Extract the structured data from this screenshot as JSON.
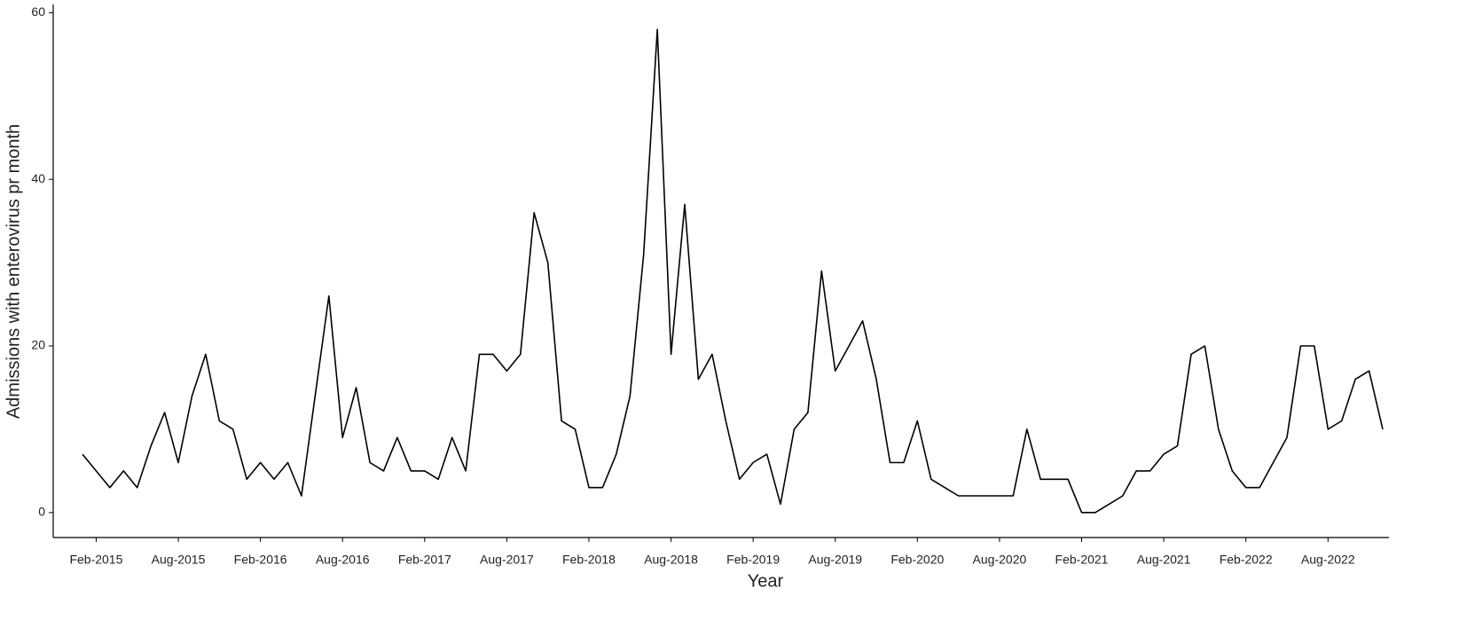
{
  "chart_data": {
    "type": "line",
    "x_label": "Year",
    "y_label": "Admissions with enterovirus pr month",
    "categories": [
      null,
      "Feb-2015",
      null,
      null,
      null,
      null,
      null,
      "Aug-2015",
      null,
      null,
      null,
      null,
      null,
      "Feb-2016",
      null,
      null,
      null,
      null,
      null,
      "Aug-2016",
      null,
      null,
      null,
      null,
      null,
      "Feb-2017",
      null,
      null,
      null,
      null,
      null,
      "Aug-2017",
      null,
      null,
      null,
      null,
      null,
      "Feb-2018",
      null,
      null,
      null,
      null,
      null,
      "Aug-2018",
      null,
      null,
      null,
      null,
      null,
      "Feb-2019",
      null,
      null,
      null,
      null,
      null,
      "Aug-2019",
      null,
      null,
      null,
      null,
      null,
      "Feb-2020",
      null,
      null,
      null,
      null,
      null,
      "Aug-2020",
      null,
      null,
      null,
      null,
      null,
      "Feb-2021",
      null,
      null,
      null,
      null,
      null,
      "Aug-2021",
      null,
      null,
      null,
      null,
      null,
      "Feb-2022",
      null,
      null,
      null,
      null,
      null,
      "Aug-2022",
      null,
      null,
      null,
      null
    ],
    "series": [
      {
        "color": "#000000",
        "values": [
          7,
          5,
          3,
          5,
          3,
          8,
          12,
          6,
          14,
          19,
          11,
          10,
          4,
          6,
          4,
          6,
          2,
          14,
          26,
          9,
          15,
          6,
          5,
          9,
          5,
          5,
          4,
          9,
          5,
          19,
          19,
          17,
          19,
          36,
          30,
          11,
          10,
          3,
          3,
          7,
          14,
          31,
          58,
          19,
          37,
          16,
          19,
          11,
          4,
          6,
          7,
          1,
          10,
          12,
          29,
          17,
          20,
          23,
          16,
          6,
          6,
          11,
          4,
          3,
          2,
          2,
          2,
          2,
          2,
          10,
          4,
          4,
          4,
          0,
          0,
          1,
          2,
          5,
          5,
          7,
          8,
          19,
          20,
          10,
          5,
          3,
          3,
          6,
          9,
          20,
          20,
          10,
          11,
          16,
          17,
          10
        ]
      }
    ],
    "ylim": [
      -3,
      61
    ],
    "yticks": [
      0,
      20,
      40,
      60
    ]
  }
}
